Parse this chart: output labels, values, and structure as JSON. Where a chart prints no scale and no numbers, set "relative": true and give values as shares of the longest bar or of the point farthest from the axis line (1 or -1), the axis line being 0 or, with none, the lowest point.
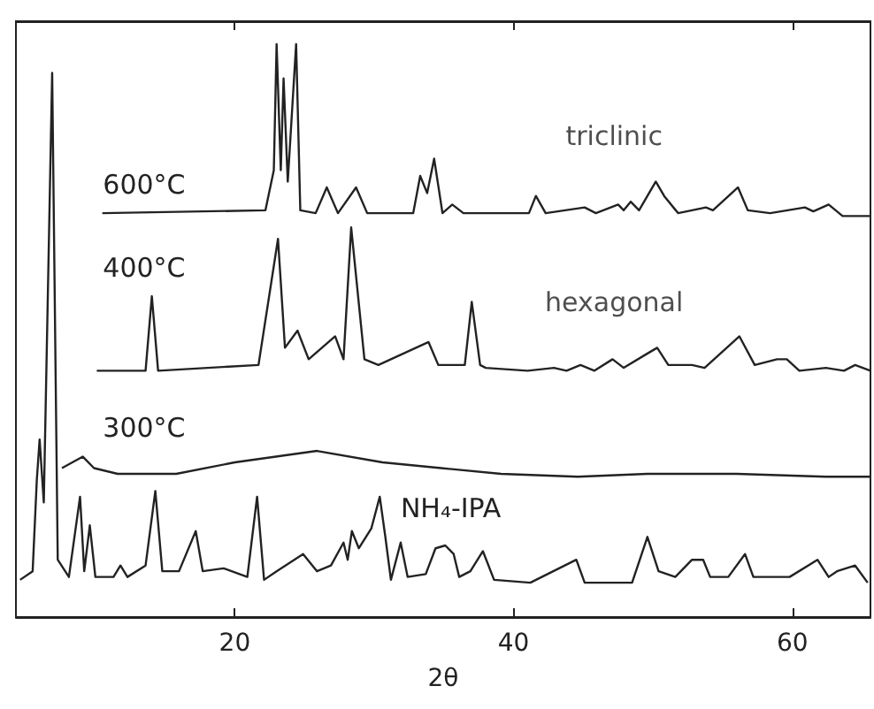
{
  "chart_data": {
    "type": "line",
    "relative": true,
    "xlabel": "2θ",
    "xlim": [
      4.3,
      65.6
    ],
    "xticks": [
      20,
      40,
      60
    ],
    "grid": false,
    "legend": false,
    "marker": "none",
    "line_style": "solid",
    "annotations": [
      "triclinic",
      "hexagonal"
    ],
    "series": [
      {
        "name": "600°C",
        "color": "#222222",
        "x": [
          10.5,
          22.2,
          22.8,
          23.0,
          23.3,
          23.5,
          23.8,
          24.4,
          24.7,
          25.8,
          26.6,
          27.4,
          28.7,
          29.5,
          32.8,
          33.3,
          33.8,
          34.3,
          34.9,
          35.6,
          36.4,
          41.1,
          41.6,
          42.3,
          45.1,
          45.9,
          47.5,
          47.9,
          48.4,
          49.0,
          50.2,
          50.8,
          51.8,
          53.8,
          54.3,
          56.1,
          56.8,
          58.4,
          60.9,
          61.5,
          62.6,
          63.6,
          65.6
        ],
        "values": [
          0.705,
          0.71,
          0.78,
          1.0,
          0.78,
          0.94,
          0.76,
          1.0,
          0.71,
          0.705,
          0.75,
          0.705,
          0.75,
          0.705,
          0.705,
          0.77,
          0.74,
          0.8,
          0.705,
          0.72,
          0.705,
          0.705,
          0.735,
          0.705,
          0.715,
          0.705,
          0.72,
          0.71,
          0.725,
          0.71,
          0.76,
          0.735,
          0.705,
          0.715,
          0.71,
          0.75,
          0.71,
          0.705,
          0.715,
          0.708,
          0.72,
          0.7,
          0.7
        ]
      },
      {
        "name": "400°C",
        "color": "#222222",
        "x": [
          10.1,
          13.6,
          14.05,
          14.5,
          21.7,
          23.1,
          23.6,
          24.5,
          25.3,
          27.2,
          27.8,
          28.35,
          29.3,
          30.3,
          33.9,
          34.6,
          36.5,
          37.0,
          37.6,
          38.0,
          41.0,
          42.9,
          43.8,
          44.8,
          45.8,
          47.1,
          47.9,
          49.6,
          50.3,
          51.1,
          52.8,
          53.7,
          56.2,
          57.3,
          58.9,
          59.6,
          60.5,
          62.4,
          63.7,
          64.5,
          65.6
        ],
        "values": [
          0.43,
          0.43,
          0.56,
          0.43,
          0.44,
          0.66,
          0.47,
          0.5,
          0.45,
          0.49,
          0.45,
          0.68,
          0.45,
          0.44,
          0.48,
          0.44,
          0.44,
          0.55,
          0.44,
          0.435,
          0.43,
          0.435,
          0.43,
          0.44,
          0.43,
          0.45,
          0.435,
          0.46,
          0.47,
          0.44,
          0.44,
          0.435,
          0.49,
          0.44,
          0.45,
          0.45,
          0.43,
          0.435,
          0.43,
          0.44,
          0.43
        ]
      },
      {
        "name": "300°C",
        "color": "#222222",
        "x": [
          7.6,
          9.1,
          9.9,
          11.6,
          15.8,
          20.0,
          25.9,
          30.6,
          34.8,
          39.1,
          44.6,
          49.6,
          56.0,
          62.4,
          65.6
        ],
        "values": [
          0.26,
          0.28,
          0.26,
          0.25,
          0.25,
          0.27,
          0.29,
          0.27,
          0.26,
          0.25,
          0.245,
          0.25,
          0.25,
          0.245,
          0.245
        ]
      },
      {
        "name": "NH₄-IPA",
        "color": "#222222",
        "x": [
          4.6,
          5.5,
          5.8,
          6.0,
          6.3,
          6.9,
          7.3,
          8.1,
          8.9,
          9.2,
          9.6,
          10.0,
          11.3,
          11.8,
          12.3,
          13.6,
          14.3,
          14.8,
          16.0,
          17.2,
          17.7,
          19.2,
          20.9,
          21.6,
          22.1,
          23.0,
          24.9,
          25.9,
          26.9,
          27.8,
          28.1,
          28.4,
          28.9,
          29.8,
          30.4,
          30.8,
          31.2,
          31.9,
          32.4,
          33.7,
          34.4,
          35.1,
          35.7,
          36.1,
          36.9,
          37.8,
          38.6,
          41.2,
          44.5,
          45.1,
          48.5,
          49.6,
          50.4,
          51.6,
          52.8,
          53.6,
          54.1,
          55.4,
          56.6,
          57.2,
          59.8,
          61.8,
          62.6,
          63.2,
          64.5,
          65.4
        ],
        "values": [
          0.065,
          0.08,
          0.24,
          0.31,
          0.2,
          0.95,
          0.1,
          0.07,
          0.21,
          0.08,
          0.16,
          0.07,
          0.07,
          0.09,
          0.07,
          0.09,
          0.22,
          0.08,
          0.08,
          0.15,
          0.08,
          0.085,
          0.07,
          0.21,
          0.065,
          0.08,
          0.11,
          0.08,
          0.09,
          0.13,
          0.1,
          0.15,
          0.12,
          0.155,
          0.21,
          0.14,
          0.065,
          0.13,
          0.07,
          0.075,
          0.12,
          0.125,
          0.11,
          0.07,
          0.08,
          0.115,
          0.065,
          0.06,
          0.1,
          0.06,
          0.06,
          0.14,
          0.08,
          0.07,
          0.1,
          0.1,
          0.07,
          0.07,
          0.11,
          0.07,
          0.07,
          0.1,
          0.07,
          0.08,
          0.09,
          0.06
        ]
      }
    ]
  }
}
